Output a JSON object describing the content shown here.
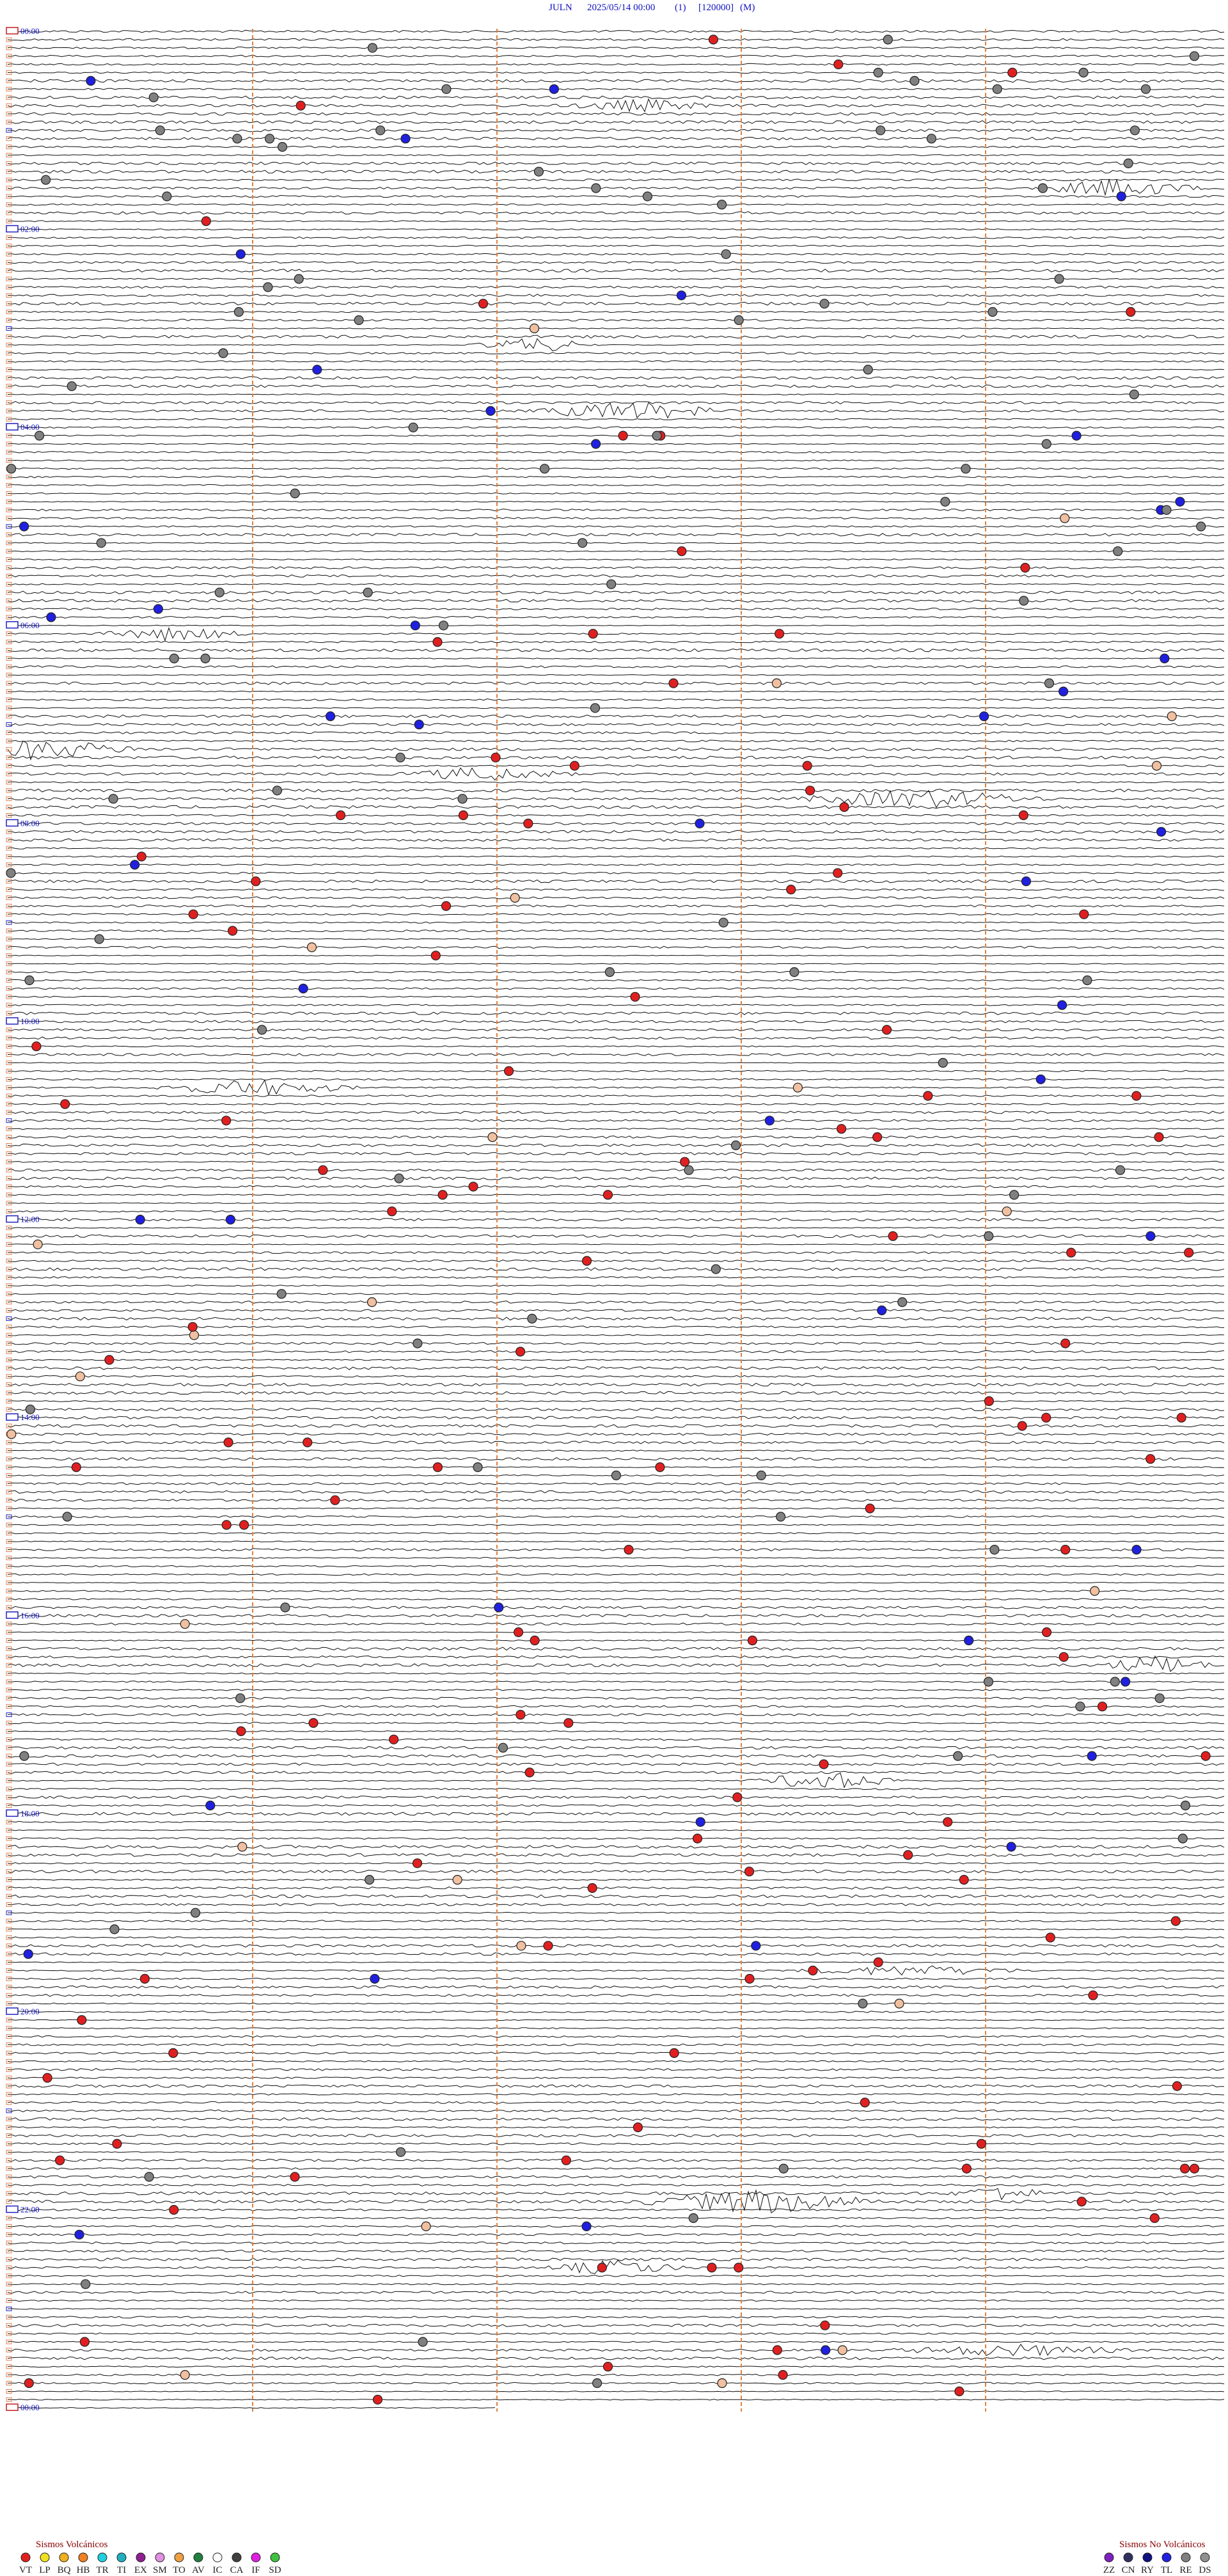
{
  "header": {
    "station": "JULN",
    "datetime": "2025/05/14 00:00",
    "channel": "(1)",
    "scale": "[120000]",
    "mode": "(M)"
  },
  "hour_labels": [
    "00:00",
    "02:00",
    "04:00",
    "06:00",
    "08:00",
    "10:00",
    "12:00",
    "14:00",
    "16:00",
    "18:00",
    "20:00",
    "22:00",
    "00:00"
  ],
  "legend": {
    "volcanic": {
      "title": "Sismos Volcánicos",
      "items": [
        {
          "code": "VT",
          "color": "#e02020"
        },
        {
          "code": "LP",
          "color": "#f0e020"
        },
        {
          "code": "BQ",
          "color": "#f0b020"
        },
        {
          "code": "HB",
          "color": "#f08020"
        },
        {
          "code": "TR",
          "color": "#20d0e0"
        },
        {
          "code": "TI",
          "color": "#20b0c0"
        },
        {
          "code": "EX",
          "color": "#902090"
        },
        {
          "code": "SM",
          "color": "#e090e0"
        },
        {
          "code": "TO",
          "color": "#f0a040"
        },
        {
          "code": "AV",
          "color": "#208040"
        },
        {
          "code": "IC",
          "color": "#ffffff"
        },
        {
          "code": "CA",
          "color": "#404040"
        },
        {
          "code": "IF",
          "color": "#e020e0"
        },
        {
          "code": "SD",
          "color": "#40c040"
        }
      ]
    },
    "non_volcanic": {
      "title": "Sismos No Volcánicos",
      "items": [
        {
          "code": "ZZ",
          "color": "#8020c0"
        },
        {
          "code": "CN",
          "color": "#303060"
        },
        {
          "code": "RY",
          "color": "#101080"
        },
        {
          "code": "TL",
          "color": "#2020e0"
        },
        {
          "code": "RE",
          "color": "#808080"
        },
        {
          "code": "DS",
          "color": "#909090"
        }
      ]
    }
  }
}
